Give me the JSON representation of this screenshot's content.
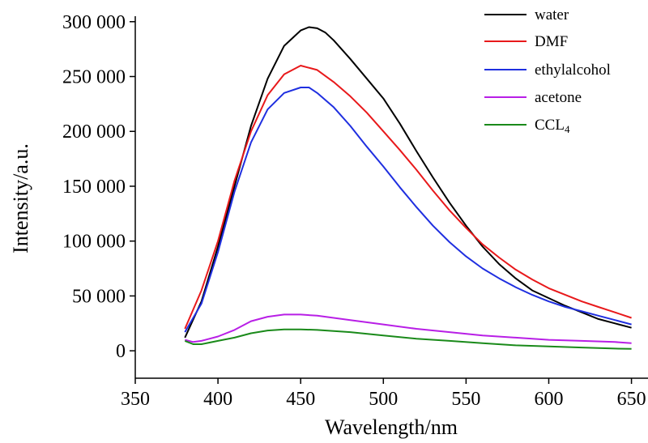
{
  "chart_data": {
    "type": "line",
    "title": "",
    "xlabel": "Wavelength/nm",
    "ylabel": "Intensity/a.u.",
    "xlim": [
      350,
      660
    ],
    "ylim": [
      -25000,
      305000
    ],
    "xticks": [
      350,
      400,
      450,
      500,
      550,
      600,
      650
    ],
    "yticks": [
      0,
      50000,
      100000,
      150000,
      200000,
      250000,
      300000
    ],
    "xtick_labels": [
      "350",
      "400",
      "450",
      "500",
      "550",
      "600",
      "650"
    ],
    "ytick_labels": [
      "0",
      "50 000",
      "100 000",
      "150 000",
      "200 000",
      "250 000",
      "300 000"
    ],
    "grid": false,
    "legend_position": "top-right",
    "series": [
      {
        "name": "water",
        "color": "#000000",
        "x": [
          380,
          390,
          400,
          410,
          420,
          430,
          440,
          450,
          455,
          460,
          465,
          470,
          480,
          490,
          500,
          510,
          520,
          530,
          540,
          550,
          560,
          570,
          580,
          590,
          600,
          610,
          620,
          630,
          640,
          650
        ],
        "y": [
          12000,
          45000,
          95000,
          150000,
          205000,
          248000,
          278000,
          292000,
          295000,
          294000,
          290000,
          283000,
          266000,
          248000,
          230000,
          207000,
          182000,
          158000,
          135000,
          114000,
          95000,
          79000,
          66000,
          55000,
          48000,
          41000,
          35000,
          29000,
          25000,
          21000
        ]
      },
      {
        "name": "DMF",
        "color": "#e8191b",
        "x": [
          380,
          390,
          400,
          410,
          420,
          430,
          440,
          450,
          460,
          470,
          480,
          490,
          500,
          510,
          520,
          530,
          540,
          550,
          560,
          570,
          580,
          590,
          600,
          610,
          620,
          630,
          640,
          650
        ],
        "y": [
          20000,
          55000,
          100000,
          155000,
          200000,
          233000,
          252000,
          260000,
          256000,
          245000,
          232000,
          217000,
          200000,
          183000,
          165000,
          146000,
          128000,
          112000,
          97000,
          85000,
          74000,
          65000,
          57000,
          51000,
          45000,
          40000,
          35000,
          30000
        ]
      },
      {
        "name": "ethylalcohol",
        "color": "#1f2fe0",
        "x": [
          380,
          390,
          400,
          410,
          420,
          430,
          440,
          450,
          455,
          460,
          470,
          480,
          490,
          500,
          510,
          520,
          530,
          540,
          550,
          560,
          570,
          580,
          590,
          600,
          610,
          620,
          630,
          640,
          650
        ],
        "y": [
          17000,
          43000,
          90000,
          145000,
          190000,
          220000,
          235000,
          240000,
          240000,
          235000,
          222000,
          205000,
          186000,
          168000,
          149000,
          131000,
          114000,
          99000,
          86000,
          75000,
          66000,
          58000,
          51000,
          45000,
          40000,
          36000,
          32000,
          28000,
          24000
        ]
      },
      {
        "name": "acetone",
        "color": "#b81fe6",
        "x": [
          380,
          385,
          390,
          400,
          410,
          420,
          430,
          440,
          450,
          460,
          470,
          480,
          500,
          520,
          540,
          560,
          580,
          600,
          620,
          640,
          650
        ],
        "y": [
          10000,
          8000,
          9000,
          13000,
          19000,
          27000,
          31000,
          33000,
          33000,
          32000,
          30000,
          28000,
          24000,
          20000,
          17000,
          14000,
          12000,
          10000,
          9000,
          8000,
          7000
        ]
      },
      {
        "name": "CCL4",
        "color": "#1a8a1a",
        "x": [
          380,
          385,
          390,
          400,
          410,
          420,
          430,
          440,
          450,
          460,
          470,
          480,
          500,
          520,
          540,
          560,
          580,
          600,
          620,
          640,
          650
        ],
        "y": [
          9000,
          6000,
          6000,
          9000,
          12000,
          16000,
          18500,
          19500,
          19500,
          19000,
          18000,
          17000,
          14000,
          11000,
          9000,
          7000,
          5000,
          4000,
          3000,
          2000,
          1800
        ]
      }
    ]
  },
  "legend": {
    "items": [
      {
        "label": "water",
        "color": "#000000"
      },
      {
        "label": "DMF",
        "color": "#e8191b"
      },
      {
        "label": "ethylalcohol",
        "color": "#1f2fe0"
      },
      {
        "label": "acetone",
        "color": "#b81fe6"
      },
      {
        "label_main": "CCL",
        "label_sub": "4",
        "color": "#1a8a1a"
      }
    ]
  }
}
